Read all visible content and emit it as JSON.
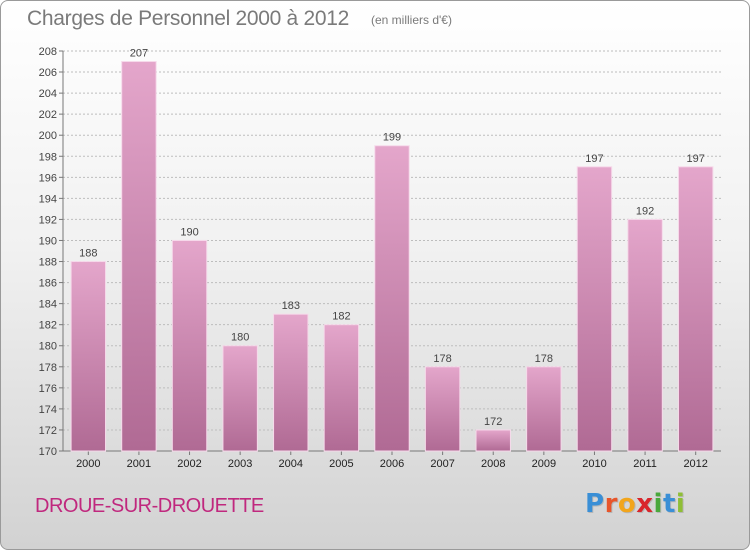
{
  "header": {
    "title": "Charges de Personnel 2000 à 2012",
    "subtitle": "(en milliers d'€)"
  },
  "footer": {
    "city": "DROUE-SUR-DROUETTE",
    "logo": "Proxiti",
    "logo_letters": [
      {
        "ch": "P",
        "color": "#3a8fd6"
      },
      {
        "ch": "r",
        "color": "#e8552a"
      },
      {
        "ch": "o",
        "color": "#f2a51c"
      },
      {
        "ch": "x",
        "color": "#d9262c"
      },
      {
        "ch": "i",
        "color": "#4aa83c"
      },
      {
        "ch": "t",
        "color": "#3a8fd6"
      },
      {
        "ch": "i",
        "color": "#8fbe36"
      }
    ]
  },
  "colors": {
    "bar_top": "#e4a6cb",
    "bar_bottom": "#b06a94",
    "city": "#c0287e"
  },
  "chart_data": {
    "type": "bar",
    "categories": [
      "2000",
      "2001",
      "2002",
      "2003",
      "2004",
      "2005",
      "2006",
      "2007",
      "2008",
      "2009",
      "2010",
      "2011",
      "2012"
    ],
    "values": [
      188,
      207,
      190,
      180,
      183,
      182,
      199,
      178,
      172,
      178,
      197,
      192,
      197
    ],
    "ylim": [
      170,
      208
    ],
    "yticks": [
      170,
      172,
      174,
      176,
      178,
      180,
      182,
      184,
      186,
      188,
      190,
      192,
      194,
      196,
      198,
      200,
      202,
      204,
      206,
      208
    ],
    "grid": true,
    "title": "Charges de Personnel 2000 à 2012"
  }
}
